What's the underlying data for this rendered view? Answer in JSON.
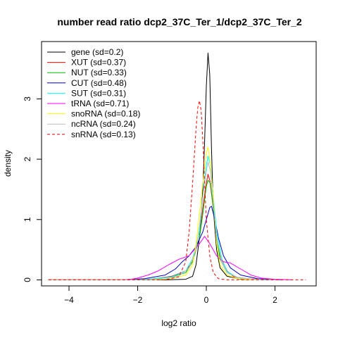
{
  "chart_data": {
    "type": "line",
    "title": "number read ratio dcp2_37C_Ter_1/dcp2_37C_Ter_2",
    "xlabel": "log2 ratio",
    "ylabel": "density",
    "xlim": [
      -4.8,
      3.2
    ],
    "ylim": [
      -0.1,
      3.95
    ],
    "xticks": [
      -4,
      -2,
      0,
      2
    ],
    "yticks": [
      0,
      1,
      2,
      3
    ],
    "grid": false,
    "legend_position": "top-left",
    "series": [
      {
        "name": "gene (sd=0.2)",
        "color": "#000000",
        "dashed": false,
        "points": [
          [
            -4.6,
            0
          ],
          [
            -1.2,
            0
          ],
          [
            -0.6,
            0.01
          ],
          [
            -0.4,
            0.06
          ],
          [
            -0.3,
            0.25
          ],
          [
            -0.2,
            0.7
          ],
          [
            -0.1,
            1.5
          ],
          [
            -0.05,
            2.3
          ],
          [
            0.0,
            3.2
          ],
          [
            0.05,
            3.76
          ],
          [
            0.1,
            3.4
          ],
          [
            0.15,
            2.2
          ],
          [
            0.2,
            1.2
          ],
          [
            0.3,
            0.5
          ],
          [
            0.4,
            0.2
          ],
          [
            0.6,
            0.06
          ],
          [
            1.0,
            0.01
          ],
          [
            2.0,
            0
          ]
        ]
      },
      {
        "name": "XUT (sd=0.37)",
        "color": "#ff0000",
        "dashed": false,
        "points": [
          [
            -4.6,
            0
          ],
          [
            -2.0,
            0
          ],
          [
            -1.5,
            0.02
          ],
          [
            -1.0,
            0.06
          ],
          [
            -0.6,
            0.15
          ],
          [
            -0.4,
            0.3
          ],
          [
            -0.2,
            0.7
          ],
          [
            -0.1,
            1.2
          ],
          [
            0.0,
            1.6
          ],
          [
            0.05,
            1.75
          ],
          [
            0.1,
            1.65
          ],
          [
            0.2,
            1.2
          ],
          [
            0.3,
            0.7
          ],
          [
            0.4,
            0.4
          ],
          [
            0.6,
            0.15
          ],
          [
            0.8,
            0.05
          ],
          [
            1.2,
            0.02
          ],
          [
            2.0,
            0
          ]
        ]
      },
      {
        "name": "NUT (sd=0.33)",
        "color": "#00bb00",
        "dashed": false,
        "points": [
          [
            -4.6,
            0
          ],
          [
            -2.0,
            0
          ],
          [
            -1.5,
            0.02
          ],
          [
            -1.0,
            0.05
          ],
          [
            -0.6,
            0.12
          ],
          [
            -0.4,
            0.3
          ],
          [
            -0.2,
            0.7
          ],
          [
            -0.1,
            1.1
          ],
          [
            0.0,
            1.55
          ],
          [
            0.05,
            1.65
          ],
          [
            0.12,
            1.6
          ],
          [
            0.2,
            1.2
          ],
          [
            0.3,
            0.7
          ],
          [
            0.4,
            0.35
          ],
          [
            0.6,
            0.12
          ],
          [
            0.9,
            0.04
          ],
          [
            1.3,
            0.01
          ],
          [
            2.0,
            0
          ]
        ]
      },
      {
        "name": "CUT (sd=0.48)",
        "color": "#0000cc",
        "dashed": false,
        "points": [
          [
            -4.6,
            0
          ],
          [
            -2.5,
            0
          ],
          [
            -1.8,
            0.02
          ],
          [
            -1.2,
            0.08
          ],
          [
            -0.9,
            0.18
          ],
          [
            -0.7,
            0.3
          ],
          [
            -0.5,
            0.4
          ],
          [
            -0.3,
            0.55
          ],
          [
            -0.1,
            0.8
          ],
          [
            0.0,
            1.0
          ],
          [
            0.1,
            1.2
          ],
          [
            0.15,
            1.22
          ],
          [
            0.25,
            1.0
          ],
          [
            0.35,
            0.7
          ],
          [
            0.5,
            0.4
          ],
          [
            0.7,
            0.2
          ],
          [
            1.0,
            0.08
          ],
          [
            1.5,
            0.02
          ],
          [
            2.2,
            0
          ]
        ]
      },
      {
        "name": "SUT (sd=0.31)",
        "color": "#00ffff",
        "dashed": false,
        "points": [
          [
            -4.6,
            0
          ],
          [
            -2.0,
            0
          ],
          [
            -1.5,
            0.02
          ],
          [
            -1.0,
            0.05
          ],
          [
            -0.6,
            0.15
          ],
          [
            -0.4,
            0.35
          ],
          [
            -0.2,
            0.8
          ],
          [
            -0.1,
            1.4
          ],
          [
            0.0,
            1.9
          ],
          [
            0.05,
            2.05
          ],
          [
            0.12,
            1.9
          ],
          [
            0.2,
            1.4
          ],
          [
            0.3,
            0.8
          ],
          [
            0.45,
            0.35
          ],
          [
            0.6,
            0.14
          ],
          [
            0.9,
            0.04
          ],
          [
            1.3,
            0.01
          ],
          [
            2.0,
            0
          ]
        ]
      },
      {
        "name": "tRNA (sd=0.71)",
        "color": "#ff00ff",
        "dashed": false,
        "points": [
          [
            -4.6,
            0
          ],
          [
            -2.5,
            0
          ],
          [
            -2.2,
            0.01
          ],
          [
            -2.0,
            0.03
          ],
          [
            -1.7,
            0.08
          ],
          [
            -1.4,
            0.15
          ],
          [
            -1.1,
            0.25
          ],
          [
            -0.8,
            0.34
          ],
          [
            -0.5,
            0.4
          ],
          [
            -0.2,
            0.6
          ],
          [
            -0.05,
            0.72
          ],
          [
            0.1,
            0.6
          ],
          [
            0.3,
            0.4
          ],
          [
            0.5,
            0.3
          ],
          [
            0.7,
            0.28
          ],
          [
            1.0,
            0.18
          ],
          [
            1.3,
            0.08
          ],
          [
            1.6,
            0.03
          ],
          [
            2.0,
            0.01
          ],
          [
            2.5,
            0
          ]
        ]
      },
      {
        "name": "snoRNA (sd=0.18)",
        "color": "#ffff00",
        "dashed": false,
        "points": [
          [
            -4.6,
            0
          ],
          [
            -1.5,
            0
          ],
          [
            -1.0,
            0.02
          ],
          [
            -0.6,
            0.08
          ],
          [
            -0.4,
            0.25
          ],
          [
            -0.3,
            0.6
          ],
          [
            -0.2,
            1.1
          ],
          [
            -0.1,
            1.6
          ],
          [
            0.0,
            2.1
          ],
          [
            0.05,
            2.2
          ],
          [
            0.1,
            2.0
          ],
          [
            0.2,
            1.4
          ],
          [
            0.3,
            0.6
          ],
          [
            0.4,
            0.25
          ],
          [
            0.6,
            0.08
          ],
          [
            0.9,
            0.02
          ],
          [
            1.5,
            0
          ]
        ]
      },
      {
        "name": "ncRNA (sd=0.24)",
        "color": "#bbbbbb",
        "dashed": false,
        "points": [
          [
            -4.6,
            0
          ],
          [
            -1.8,
            0
          ],
          [
            -1.2,
            0.02
          ],
          [
            -0.8,
            0.06
          ],
          [
            -0.5,
            0.2
          ],
          [
            -0.3,
            0.5
          ],
          [
            -0.2,
            0.9
          ],
          [
            -0.1,
            1.4
          ],
          [
            0.0,
            1.8
          ],
          [
            0.05,
            1.95
          ],
          [
            0.12,
            1.8
          ],
          [
            0.2,
            1.3
          ],
          [
            0.3,
            0.7
          ],
          [
            0.45,
            0.3
          ],
          [
            0.6,
            0.12
          ],
          [
            0.9,
            0.04
          ],
          [
            1.4,
            0.01
          ],
          [
            2.0,
            0
          ]
        ]
      },
      {
        "name": "snRNA (sd=0.13)",
        "color": "#ff0000",
        "dashed": true,
        "points": [
          [
            -4.6,
            0
          ],
          [
            -1.2,
            0
          ],
          [
            -0.8,
            0.05
          ],
          [
            -0.6,
            0.3
          ],
          [
            -0.5,
            0.8
          ],
          [
            -0.4,
            1.6
          ],
          [
            -0.3,
            2.5
          ],
          [
            -0.25,
            2.85
          ],
          [
            -0.2,
            2.97
          ],
          [
            -0.15,
            2.8
          ],
          [
            -0.1,
            2.3
          ],
          [
            -0.05,
            1.6
          ],
          [
            0.0,
            1.0
          ],
          [
            0.1,
            0.4
          ],
          [
            0.2,
            0.12
          ],
          [
            0.35,
            0.02
          ],
          [
            0.6,
            0
          ],
          [
            2.9,
            0
          ]
        ]
      }
    ]
  }
}
